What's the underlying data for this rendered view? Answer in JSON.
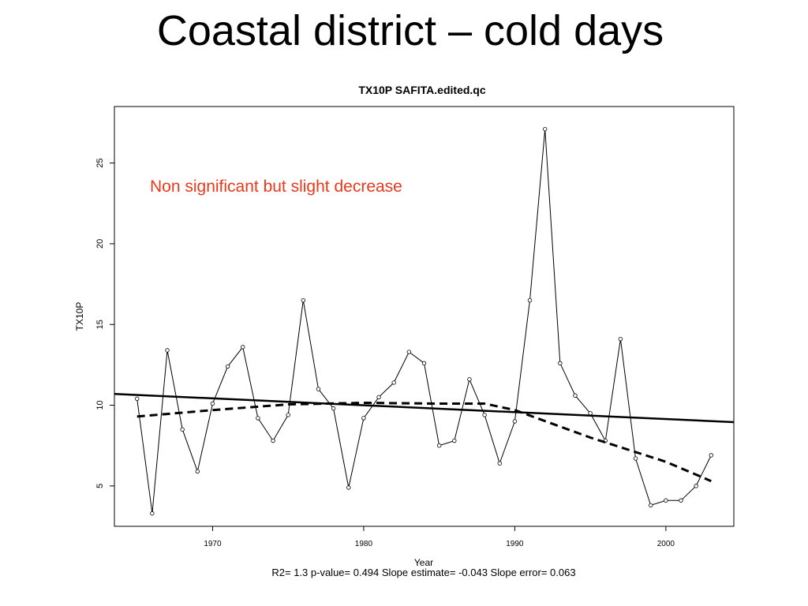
{
  "slide": {
    "title": "Coastal district – cold days"
  },
  "colors": {
    "annotation": "#e8391a",
    "axis": "#000000",
    "series": "#000000"
  },
  "chart_data": {
    "type": "line",
    "title": "TX10P   SAFITA.edited.qc",
    "xlabel": "Year",
    "ylabel": "TX10P",
    "xlim": [
      1963.5,
      2004.5
    ],
    "ylim": [
      2.5,
      28.5
    ],
    "xticks": [
      1970,
      1980,
      1990,
      2000
    ],
    "yticks": [
      5,
      10,
      15,
      20,
      25
    ],
    "annotation": "Non significant but slight decrease",
    "footer": "R2= 1.3  p-value= 0.494  Slope estimate= -0.043  Slope error= 0.063",
    "series": [
      {
        "style": "line-with-circle-markers",
        "x": [
          1965,
          1966,
          1967,
          1968,
          1969,
          1970,
          1971,
          1972,
          1973,
          1974,
          1975,
          1976,
          1977,
          1978,
          1979,
          1980,
          1981,
          1982,
          1983,
          1984,
          1985,
          1986,
          1987,
          1988,
          1989,
          1990,
          1991,
          1992,
          1993,
          1994,
          1995,
          1996,
          1997,
          1998,
          1999,
          2000,
          2001,
          2002,
          2003
        ],
        "values": [
          10.4,
          3.3,
          13.4,
          8.5,
          5.9,
          10.1,
          12.4,
          13.6,
          9.2,
          7.8,
          9.4,
          16.5,
          11.0,
          9.8,
          4.9,
          9.2,
          10.5,
          11.4,
          13.3,
          12.6,
          7.5,
          7.8,
          11.6,
          9.4,
          6.4,
          9.0,
          16.5,
          27.1,
          12.6,
          10.6,
          9.5,
          7.8,
          14.1,
          6.7,
          3.8,
          4.1,
          4.1,
          5.0,
          6.9
        ]
      },
      {
        "style": "solid-trend",
        "x": [
          1963.5,
          2004.5
        ],
        "values": [
          10.7,
          8.95
        ]
      },
      {
        "style": "dashed-smooth",
        "x": [
          1965,
          1970,
          1975,
          1980,
          1985,
          1988,
          1990,
          1995,
          2000,
          2003
        ],
        "values": [
          9.3,
          9.7,
          10.05,
          10.15,
          10.1,
          10.1,
          9.7,
          8.0,
          6.5,
          5.3
        ]
      }
    ]
  }
}
